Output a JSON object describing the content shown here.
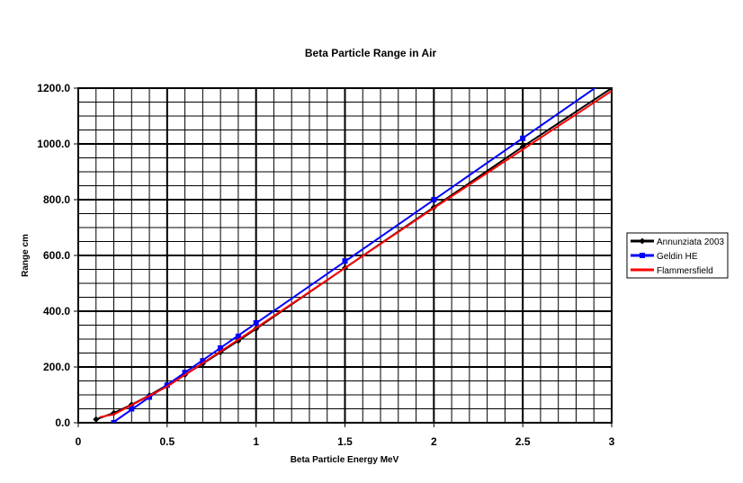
{
  "chart_data": {
    "type": "line",
    "title": "Beta Particle Range in Air",
    "xlabel": "Beta Particle Energy MeV",
    "ylabel": "Range cm",
    "xlim": [
      0,
      3
    ],
    "ylim": [
      0,
      1200
    ],
    "x_ticks": [
      "0",
      "0.5",
      "1",
      "1.5",
      "2",
      "2.5",
      "3"
    ],
    "y_ticks": [
      "0.0",
      "200.0",
      "400.0",
      "600.0",
      "800.0",
      "1000.0",
      "1200.0"
    ],
    "x_tick_values": [
      0,
      0.5,
      1,
      1.5,
      2,
      2.5,
      3
    ],
    "y_tick_values": [
      0,
      200,
      400,
      600,
      800,
      1000,
      1200
    ],
    "grid": true,
    "legend_position": "right",
    "series": [
      {
        "name": "Annunziata 2003",
        "color": "#000000",
        "marker": "diamond",
        "x": [
          0.1,
          0.2,
          0.3,
          0.4,
          0.5,
          0.6,
          0.7,
          0.8,
          0.9,
          1.0,
          1.5,
          2.0,
          2.5,
          3.0
        ],
        "y": [
          12,
          35,
          65,
          98,
          135,
          172,
          212,
          253,
          294,
          337,
          555,
          773,
          990,
          1200
        ],
        "line_extent": [
          0.1,
          3.0
        ]
      },
      {
        "name": "Geldin HE",
        "color": "#0000ff",
        "marker": "square",
        "x": [
          0.2,
          0.3,
          0.4,
          0.5,
          0.6,
          0.7,
          0.8,
          0.9,
          1.0,
          1.5,
          2.0,
          2.5
        ],
        "y": [
          0,
          50,
          92,
          135,
          180,
          222,
          268,
          310,
          358,
          580,
          800,
          1020
        ],
        "line_extent": [
          0.17,
          2.94
        ]
      },
      {
        "name": "Flammersfield",
        "color": "#ff0000",
        "marker": "none",
        "x": [
          0.12,
          0.2,
          0.5,
          1.0,
          1.5,
          2.0,
          2.5,
          3.0
        ],
        "y": [
          20,
          30,
          130,
          340,
          555,
          770,
          980,
          1190
        ],
        "line_extent": [
          0.12,
          3.0
        ]
      }
    ]
  }
}
